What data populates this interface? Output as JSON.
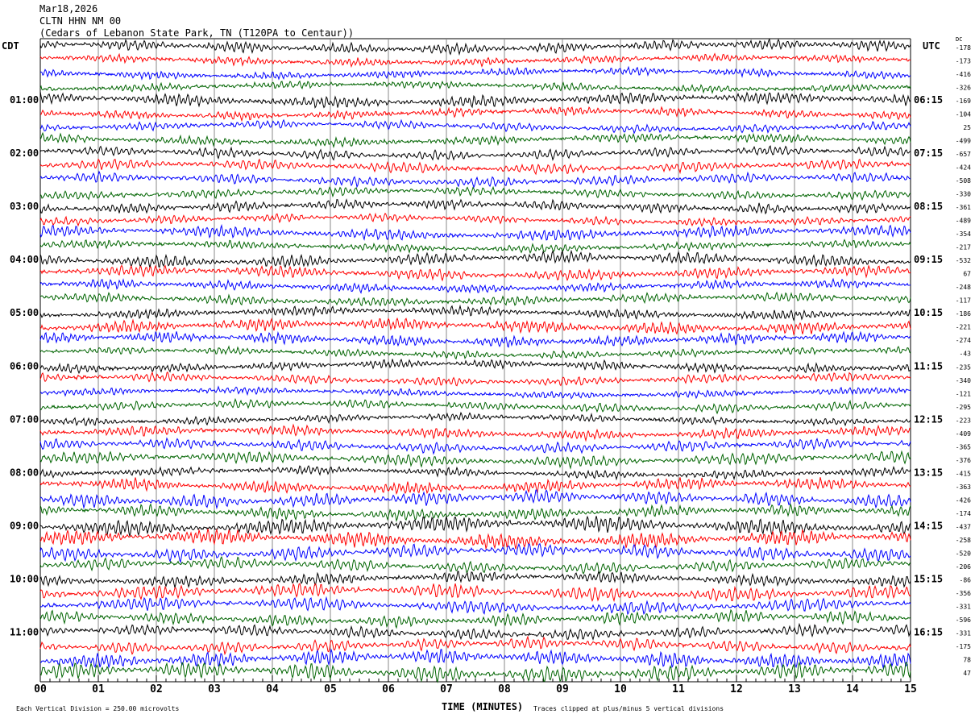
{
  "header": {
    "date": "Mar18,2026",
    "station": "CLTN HHN NM 00",
    "location": "(Cedars of Lebanon State Park, TN (T120PA to Centaur))"
  },
  "chart_data": {
    "type": "line",
    "subtype": "helicorder",
    "title": "CLTN HHN NM 00",
    "xlabel": "TIME (MINUTES)",
    "xlim": [
      0,
      15
    ],
    "x_tick_labels": [
      "00",
      "01",
      "02",
      "03",
      "04",
      "05",
      "06",
      "07",
      "08",
      "09",
      "10",
      "11",
      "12",
      "13",
      "14",
      "15"
    ],
    "left_axis_title": "CDT",
    "right_axis_title": "UTC",
    "dc_title": "DC",
    "left_hour_labels": [
      "01:00",
      "02:00",
      "03:00",
      "04:00",
      "05:00",
      "06:00",
      "07:00",
      "08:00",
      "09:00",
      "10:00",
      "11:00"
    ],
    "right_hour_labels": [
      "06:15",
      "07:15",
      "08:15",
      "09:15",
      "10:15",
      "11:15",
      "12:15",
      "13:15",
      "14:15",
      "15:15",
      "16:15"
    ],
    "rows_per_hour": 4,
    "row_count": 48,
    "dc_offsets": [
      -178,
      -173,
      -416,
      -326,
      -169,
      -104,
      25,
      -499,
      -657,
      -424,
      -508,
      -330,
      -361,
      -489,
      -354,
      -217,
      -532,
      67,
      -248,
      -117,
      -186,
      -221,
      -274,
      -43,
      -235,
      -340,
      -121,
      -295,
      -223,
      -409,
      -365,
      -376,
      -415,
      -363,
      -426,
      -174,
      -437,
      -258,
      -520,
      -206,
      -86,
      -356,
      -331,
      -596,
      -331,
      -175,
      78,
      47
    ],
    "trace_colors": [
      "#000000",
      "#ff0000",
      "#0000ff",
      "#006400"
    ],
    "scale_note": "Each Vertical Division =  250.00 microvolts",
    "clip_note": "Traces clipped at plus/minus 5 vertical divisions"
  }
}
